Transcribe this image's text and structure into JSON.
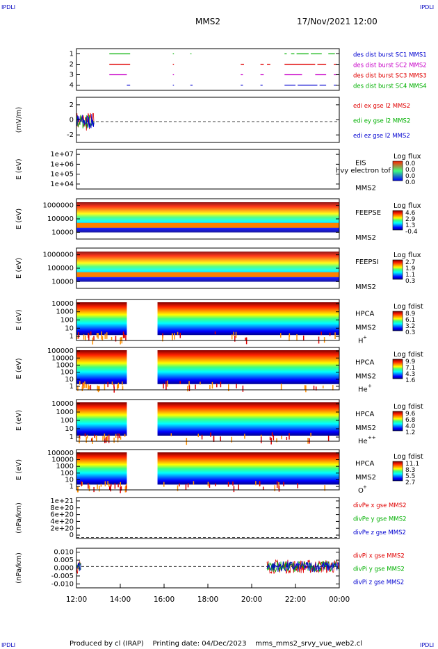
{
  "page": {
    "corner_label": "IPDLI",
    "title": "MMS2",
    "datetime": "17/Nov/2021 12:00",
    "footer": "Produced by cl (IRAP)    Printing date: 04/Dec/2023    mms_mms2_srvy_vue_web2.cl"
  },
  "colors": {
    "red": "#e00000",
    "green": "#00b000",
    "blue": "#0000d0",
    "magenta": "#c800c8",
    "axis": "#000000"
  },
  "chart_data": {
    "type": "multi-panel",
    "x_ticks": [
      "12:00",
      "14:00",
      "16:00",
      "18:00",
      "20:00",
      "22:00",
      "00:00"
    ],
    "x_range_hours": [
      12,
      24
    ],
    "panels": [
      {
        "id": "burst",
        "type": "timeline",
        "y_ticks": [
          "1",
          "2",
          "3",
          "4"
        ],
        "legend": [
          {
            "text": "des dist burst SC1 MMS1",
            "color": "#0000d0"
          },
          {
            "text": "des dist burst SC2 MMS2",
            "color": "#c800c8"
          },
          {
            "text": "des dist burst SC3 MMS3",
            "color": "#e00000"
          },
          {
            "text": "des dist burst SC4 MMS4",
            "color": "#00b000"
          }
        ],
        "segments": [
          {
            "level": 4,
            "color": "#00b000",
            "start": 13.5,
            "end": 14.45
          },
          {
            "level": 4,
            "color": "#00b000",
            "start": 16.4,
            "end": 16.45
          },
          {
            "level": 4,
            "color": "#00b000",
            "start": 17.2,
            "end": 17.25
          },
          {
            "level": 4,
            "color": "#00b000",
            "start": 21.5,
            "end": 21.6
          },
          {
            "level": 4,
            "color": "#00b000",
            "start": 21.8,
            "end": 21.95
          },
          {
            "level": 4,
            "color": "#00b000",
            "start": 22.05,
            "end": 22.6
          },
          {
            "level": 4,
            "color": "#00b000",
            "start": 22.7,
            "end": 23.2
          },
          {
            "level": 4,
            "color": "#00b000",
            "start": 23.5,
            "end": 23.8
          },
          {
            "level": 3,
            "color": "#e00000",
            "start": 13.5,
            "end": 14.45
          },
          {
            "level": 3,
            "color": "#e00000",
            "start": 16.4,
            "end": 16.45
          },
          {
            "level": 3,
            "color": "#e00000",
            "start": 19.5,
            "end": 19.65
          },
          {
            "level": 3,
            "color": "#e00000",
            "start": 20.4,
            "end": 20.55
          },
          {
            "level": 3,
            "color": "#e00000",
            "start": 20.7,
            "end": 20.85
          },
          {
            "level": 3,
            "color": "#e00000",
            "start": 21.5,
            "end": 22.9
          },
          {
            "level": 3,
            "color": "#e00000",
            "start": 23.0,
            "end": 23.4
          },
          {
            "level": 3,
            "color": "#e00000",
            "start": 23.75,
            "end": 23.9
          },
          {
            "level": 2,
            "color": "#c800c8",
            "start": 13.5,
            "end": 14.3
          },
          {
            "level": 2,
            "color": "#c800c8",
            "start": 16.4,
            "end": 16.45
          },
          {
            "level": 2,
            "color": "#c800c8",
            "start": 19.5,
            "end": 19.6
          },
          {
            "level": 2,
            "color": "#c800c8",
            "start": 20.4,
            "end": 20.55
          },
          {
            "level": 2,
            "color": "#c800c8",
            "start": 21.5,
            "end": 22.3
          },
          {
            "level": 2,
            "color": "#c800c8",
            "start": 22.9,
            "end": 23.4
          },
          {
            "level": 2,
            "color": "#c800c8",
            "start": 23.75,
            "end": 23.9
          },
          {
            "level": 1,
            "color": "#0000d0",
            "start": 14.3,
            "end": 14.45
          },
          {
            "level": 1,
            "color": "#0000d0",
            "start": 16.4,
            "end": 16.45
          },
          {
            "level": 1,
            "color": "#0000d0",
            "start": 17.2,
            "end": 17.3
          },
          {
            "level": 1,
            "color": "#0000d0",
            "start": 19.5,
            "end": 19.6
          },
          {
            "level": 1,
            "color": "#0000d0",
            "start": 20.4,
            "end": 20.5
          },
          {
            "level": 1,
            "color": "#0000d0",
            "start": 21.5,
            "end": 22.0
          },
          {
            "level": 1,
            "color": "#0000d0",
            "start": 22.1,
            "end": 23.0
          },
          {
            "level": 1,
            "color": "#0000d0",
            "start": 23.1,
            "end": 23.4
          },
          {
            "level": 1,
            "color": "#0000d0",
            "start": 23.75,
            "end": 23.9
          }
        ]
      },
      {
        "id": "edi",
        "type": "line",
        "ylabel": "(mV/m)",
        "y_ticks": [
          "2",
          "0",
          "-2"
        ],
        "ylim": [
          -3,
          3.5
        ],
        "legend": [
          {
            "text": "edi ex gse l2 MMS2",
            "color": "#e00000"
          },
          {
            "text": "edi ey gse l2 MMS2",
            "color": "#00b000"
          },
          {
            "text": "edi ez gse l2 MMS2",
            "color": "#0000d0"
          }
        ],
        "data_interval_hours": [
          12.0,
          12.8
        ]
      },
      {
        "id": "eis",
        "type": "heatmap",
        "ylabel": "E (eV)",
        "y_ticks": [
          "1e+07",
          "1e+06",
          "1e+05",
          "1e+04"
        ],
        "instrument": "EIS",
        "instrument_extra": "hvy electron tof",
        "spacecraft": "MMS2",
        "colorbar_title": "Log flux",
        "colorbar_ticks": [
          "0.0",
          "0.0",
          "0.0",
          "0.0"
        ],
        "cbar_kind": "flat"
      },
      {
        "id": "feepse",
        "type": "heatmap",
        "ylabel": "E (eV)",
        "y_ticks": [
          "1000000",
          "100000",
          "10000"
        ],
        "instrument": "FEEPSE",
        "spacecraft": "MMS2",
        "colorbar_title": "Log flux",
        "colorbar_ticks": [
          "4.6",
          "2.9",
          "1.3",
          "-0.4"
        ],
        "cbar_kind": "jet"
      },
      {
        "id": "feepsi",
        "type": "heatmap",
        "ylabel": "E (eV)",
        "y_ticks": [
          "1000000",
          "100000",
          "10000"
        ],
        "instrument": "FEEPSI",
        "spacecraft": "MMS2",
        "colorbar_title": "Log flux",
        "colorbar_ticks": [
          "2.7",
          "1.9",
          "1.1",
          "0.3"
        ],
        "cbar_kind": "jet"
      },
      {
        "id": "hpca_h",
        "type": "heatmap",
        "ylabel": "E (eV)",
        "y_ticks": [
          "10000",
          "1000",
          "100",
          "10",
          "1"
        ],
        "instrument": "HPCA",
        "spacecraft": "MMS2",
        "species_base": "H",
        "species_sup": "+",
        "colorbar_title": "Log fdist",
        "colorbar_ticks": [
          "8.9",
          "6.1",
          "3.2",
          "0.3"
        ],
        "cbar_kind": "jet",
        "gap_hours": [
          14.3,
          15.7
        ]
      },
      {
        "id": "hpca_he",
        "type": "heatmap",
        "ylabel": "E (eV)",
        "y_ticks": [
          "100000",
          "10000",
          "1000",
          "100",
          "10",
          "1"
        ],
        "instrument": "HPCA",
        "spacecraft": "MMS2",
        "species_base": "He",
        "species_sup": "+",
        "colorbar_title": "Log fdist",
        "colorbar_ticks": [
          "9.9",
          "7.1",
          "4.3",
          "1.6"
        ],
        "cbar_kind": "jet",
        "gap_hours": [
          14.3,
          15.7
        ]
      },
      {
        "id": "hpca_hepp",
        "type": "heatmap",
        "ylabel": "E (eV)",
        "y_ticks": [
          "10000",
          "1000",
          "100",
          "10",
          "1"
        ],
        "instrument": "HPCA",
        "spacecraft": "MMS2",
        "species_base": "He",
        "species_sup": "++",
        "colorbar_title": "Log fdist",
        "colorbar_ticks": [
          "9.6",
          "6.8",
          "4.0",
          "1.2"
        ],
        "cbar_kind": "jet",
        "gap_hours": [
          14.3,
          15.7
        ]
      },
      {
        "id": "hpca_o",
        "type": "heatmap",
        "ylabel": "E (eV)",
        "y_ticks": [
          "100000",
          "10000",
          "1000",
          "100",
          "10",
          "1"
        ],
        "instrument": "HPCA",
        "spacecraft": "MMS2",
        "species_base": "O",
        "species_sup": "+",
        "colorbar_title": "Log fdist",
        "colorbar_ticks": [
          "11.1",
          "8.3",
          "5.5",
          "2.7"
        ],
        "cbar_kind": "jet",
        "gap_hours": [
          14.3,
          15.7
        ]
      },
      {
        "id": "divpe",
        "type": "line",
        "ylabel": "(nPa/km)",
        "y_ticks": [
          "1e+21",
          "8e+20",
          "6e+20",
          "4e+20",
          "2e+20",
          "0"
        ],
        "ylim": [
          -3e+19,
          1.08e+21
        ],
        "legend": [
          {
            "text": "divPe x gse MMS2",
            "color": "#e00000"
          },
          {
            "text": "divPe y gse MMS2",
            "color": "#00b000"
          },
          {
            "text": "divPe z gse MMS2",
            "color": "#0000d0"
          }
        ]
      },
      {
        "id": "divpi",
        "type": "line",
        "ylabel": "(nPa/km)",
        "y_ticks": [
          "0.010",
          "0.005",
          "0.000",
          "-0.005",
          "-0.010"
        ],
        "ylim": [
          -0.014,
          0.012
        ],
        "legend": [
          {
            "text": "divPi x gse MMS2",
            "color": "#e00000"
          },
          {
            "text": "divPi y gse MMS2",
            "color": "#00b000"
          },
          {
            "text": "divPi z gse MMS2",
            "color": "#0000d0"
          }
        ],
        "data_intervals_hours": [
          [
            12.0,
            12.2
          ],
          [
            20.7,
            24.0
          ]
        ]
      }
    ]
  }
}
